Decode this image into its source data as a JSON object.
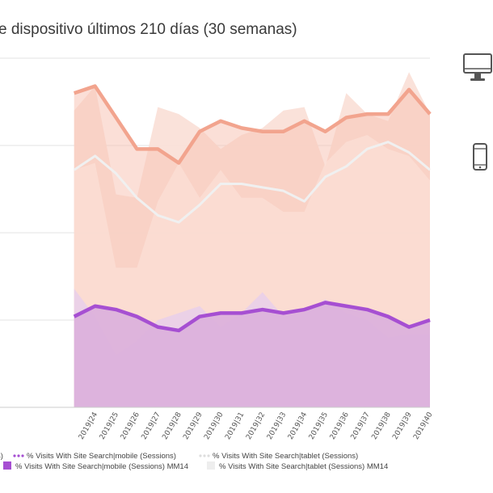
{
  "title": "e dispositivo últimos 210 días (30 semanas)",
  "colors": {
    "desktop_line": "#f2a48e",
    "desktop_fill": "#f7c5b6",
    "desktop_fill_light": "#fadfd6",
    "tablet_line": "#f0f0f0",
    "mobile_line": "#a64fd2",
    "mobile_fill": "#dcb1dc",
    "mobile_fill_light": "#e9cfe9",
    "grid": "#e3e3e3",
    "icon": "#555555"
  },
  "icons": {
    "desktop": "desktop-monitor-icon",
    "mobile": "smartphone-icon"
  },
  "legend": {
    "row1": [
      {
        "label": "s)",
        "marker": "dot"
      },
      {
        "label": "% Visits With Site Search|mobile (Sessions)",
        "marker": "dots-purple"
      },
      {
        "label": "% Visits With Site Search|tablet (Sessions)",
        "marker": "dots-light"
      }
    ],
    "row2": [
      {
        "label": "% Visits With Site Search|mobile (Sessions) MM14",
        "marker": "square-purple"
      },
      {
        "label": "% Visits With Site Search|tablet (Sessions) MM14",
        "marker": "square-light"
      }
    ]
  },
  "chart_data": {
    "type": "area",
    "title": "e dispositivo últimos 210 días (30 semanas)",
    "categories": [
      "",
      "2019|24",
      "2019|25",
      "2019|26",
      "2019|27",
      "2019|28",
      "2019|29",
      "2019|30",
      "2019|31",
      "2019|32",
      "2019|33",
      "2019|34",
      "2019|35",
      "2019|36",
      "2019|37",
      "2019|38",
      "2019|39",
      "2019|40"
    ],
    "ylim": [
      0,
      100
    ],
    "grid": true,
    "legend_position": "bottom",
    "series": [
      {
        "name": "",
        "kind": "area",
        "values": [
          90,
          92,
          83,
          74,
          74,
          70,
          79,
          82,
          80,
          79,
          79,
          82,
          79,
          83,
          84,
          84,
          91,
          84
        ]
      },
      {
        "name": "",
        "kind": "area-raw",
        "values": [
          85,
          92,
          61,
          60,
          86,
          84,
          80,
          74,
          78,
          80,
          85,
          86,
          69,
          90,
          84,
          82,
          96,
          84
        ]
      },
      {
        "name": "% Visits With Site Search|tablet (Sessions) MM14",
        "kind": "line",
        "values": [
          68,
          72,
          67,
          60,
          55,
          53,
          58,
          64,
          64,
          63,
          62,
          59,
          66,
          69,
          74,
          76,
          73,
          68
        ]
      },
      {
        "name": "% Visits With Site Search|tablet (Sessions)",
        "kind": "area-raw",
        "values": [
          68,
          70,
          40,
          40,
          59,
          70,
          60,
          68,
          60,
          60,
          56,
          56,
          70,
          76,
          78,
          74,
          72,
          65
        ]
      },
      {
        "name": "% Visits With Site Search|mobile (Sessions) MM14",
        "kind": "area",
        "values": [
          26,
          29,
          28,
          26,
          23,
          22,
          26,
          27,
          27,
          28,
          27,
          28,
          30,
          29,
          28,
          26,
          23,
          25
        ]
      },
      {
        "name": "% Visits With Site Search|mobile (Sessions)",
        "kind": "area-raw",
        "values": [
          34,
          26,
          15,
          19,
          25,
          27,
          29,
          23,
          27,
          33,
          26,
          27,
          31,
          27,
          25,
          20,
          21,
          21
        ]
      }
    ]
  }
}
